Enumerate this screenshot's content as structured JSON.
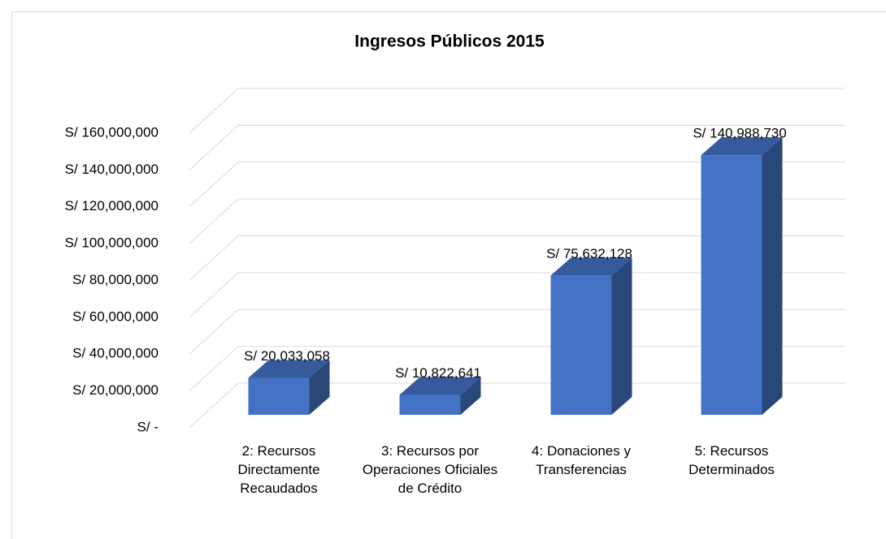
{
  "chart_data": {
    "type": "bar3d",
    "title": "Ingresos Públicos 2015",
    "categories": [
      "2: Recursos Directamente Recaudados",
      "3: Recursos por Operaciones Oficiales de Crédito",
      "4: Donaciones y Transferencias",
      "5: Recursos Determinados"
    ],
    "values": [
      20033058,
      10822641,
      75632128,
      140988730
    ],
    "value_labels": [
      "S/ 20,033,058",
      "S/ 10,822,641",
      "S/ 75,632,128",
      "S/ 140,988,730"
    ],
    "color": "#4472c4",
    "ylim": [
      0,
      160000000
    ],
    "yticks": [
      {
        "value": 0,
        "label": "S/ -"
      },
      {
        "value": 20000000,
        "label": "S/ 20,000,000"
      },
      {
        "value": 40000000,
        "label": "S/ 40,000,000"
      },
      {
        "value": 60000000,
        "label": "S/ 60,000,000"
      },
      {
        "value": 80000000,
        "label": "S/ 80,000,000"
      },
      {
        "value": 100000000,
        "label": "S/ 100,000,000"
      },
      {
        "value": 120000000,
        "label": "S/ 120,000,000"
      },
      {
        "value": 140000000,
        "label": "S/ 140,000,000"
      },
      {
        "value": 160000000,
        "label": "S/ 160,000,000"
      }
    ],
    "grid": true
  }
}
